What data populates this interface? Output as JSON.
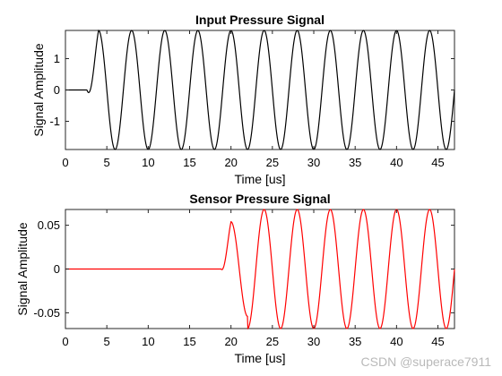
{
  "chart_data": [
    {
      "type": "line",
      "title": "Input Pressure Signal",
      "xlabel": "Time [us]",
      "ylabel": "Signal Amplitude",
      "xlim": [
        0,
        47
      ],
      "ylim": [
        -1.9,
        1.9
      ],
      "x_ticks": [
        0,
        5,
        10,
        15,
        20,
        25,
        30,
        35,
        40,
        45
      ],
      "y_ticks": [
        -1,
        0,
        1
      ],
      "grid": false,
      "series": [
        {
          "color": "#000000",
          "onset_time": 2.6,
          "peak_amplitude": 1.9,
          "period": 4.0,
          "first_peak_time": 4.0,
          "pre_onset_value": 0
        }
      ]
    },
    {
      "type": "line",
      "title": "Sensor Pressure Signal",
      "xlabel": "Time [us]",
      "ylabel": "Signal Amplitude",
      "xlim": [
        0,
        47
      ],
      "ylim": [
        -0.068,
        0.068
      ],
      "x_ticks": [
        0,
        5,
        10,
        15,
        20,
        25,
        30,
        35,
        40,
        45
      ],
      "y_ticks": [
        -0.05,
        0,
        0.05
      ],
      "grid": false,
      "series": [
        {
          "color": "#ff0000",
          "onset_time": 18.8,
          "first_peak_amplitude": 0.054,
          "peak_amplitude": 0.068,
          "period": 4.0,
          "first_peak_time": 20.0,
          "pre_onset_value": 0
        }
      ]
    }
  ],
  "watermark": "CSDN @superace7911"
}
